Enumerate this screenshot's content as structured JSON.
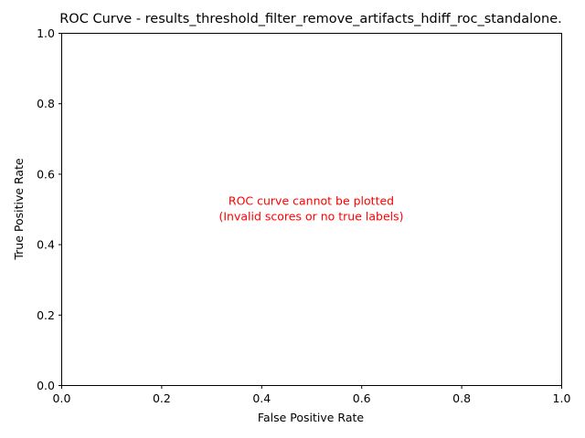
{
  "chart_data": {
    "type": "line",
    "title": "ROC Curve - results_threshold_filter_remove_artifacts_hdiff_roc_standalone.",
    "xlabel": "False Positive Rate",
    "ylabel": "True Positive Rate",
    "xlim": [
      0.0,
      1.0
    ],
    "ylim": [
      0.0,
      1.0
    ],
    "x_ticks": [
      {
        "value": 0.0,
        "label": "0.0"
      },
      {
        "value": 0.2,
        "label": "0.2"
      },
      {
        "value": 0.4,
        "label": "0.4"
      },
      {
        "value": 0.6,
        "label": "0.6"
      },
      {
        "value": 0.8,
        "label": "0.8"
      },
      {
        "value": 1.0,
        "label": "1.0"
      }
    ],
    "y_ticks": [
      {
        "value": 0.0,
        "label": "0.0"
      },
      {
        "value": 0.2,
        "label": "0.2"
      },
      {
        "value": 0.4,
        "label": "0.4"
      },
      {
        "value": 0.6,
        "label": "0.6"
      },
      {
        "value": 0.8,
        "label": "0.8"
      },
      {
        "value": 1.0,
        "label": "1.0"
      }
    ],
    "grid": false,
    "series": [],
    "annotation": {
      "lines": [
        "ROC curve cannot be plotted",
        "(Invalid scores or no true labels)"
      ],
      "color": "#ff0000",
      "x": 0.5,
      "y": 0.5
    }
  }
}
